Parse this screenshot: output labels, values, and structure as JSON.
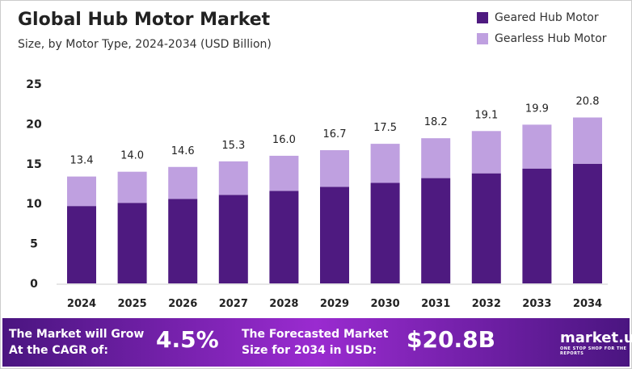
{
  "chart_data": {
    "type": "bar",
    "stacked": true,
    "title": "Global Hub Motor Market",
    "subtitle": "Size, by Motor Type, 2024-2034 (USD Billion)",
    "categories": [
      "2024",
      "2025",
      "2026",
      "2027",
      "2028",
      "2029",
      "2030",
      "2031",
      "2032",
      "2033",
      "2034"
    ],
    "series": [
      {
        "name": "Geared Hub Motor",
        "color": "#4e1a80",
        "values": [
          9.7,
          10.1,
          10.6,
          11.1,
          11.6,
          12.1,
          12.6,
          13.2,
          13.8,
          14.4,
          15.0
        ]
      },
      {
        "name": "Gearless Hub Motor",
        "color": "#bfa0e0",
        "values": [
          3.7,
          3.9,
          4.0,
          4.2,
          4.4,
          4.6,
          4.9,
          5.0,
          5.3,
          5.5,
          5.8
        ]
      }
    ],
    "totals": [
      "13.4",
      "14.0",
      "14.6",
      "15.3",
      "16.0",
      "16.7",
      "17.5",
      "18.2",
      "19.1",
      "19.9",
      "20.8"
    ],
    "ylim": [
      0,
      25
    ],
    "yticks": [
      "0",
      "5",
      "10",
      "15",
      "20",
      "25"
    ],
    "grid": false,
    "legend": "top-right"
  },
  "banner": {
    "cagr_text": "The Market will Grow At the CAGR of:",
    "cagr": "4.5%",
    "forecast_text": "The Forecasted Market Size for 2034 in USD:",
    "forecast": "$20.8B",
    "logo": "market.us",
    "tagline": "ONE STOP SHOP FOR THE REPORTS"
  }
}
